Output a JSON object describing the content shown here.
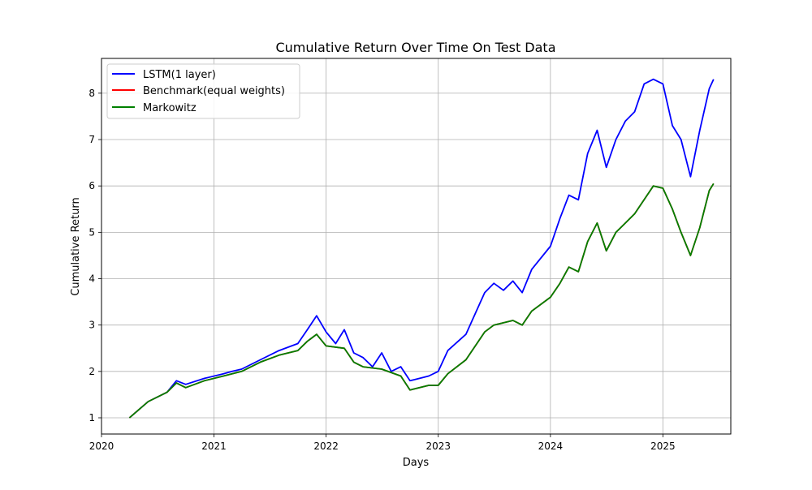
{
  "chart_data": {
    "type": "line",
    "title": "Cumulative Return Over Time On Test Data",
    "xlabel": "Days",
    "ylabel": "Cumulative Return",
    "x_ticks": [
      "2020",
      "2021",
      "2022",
      "2023",
      "2024",
      "2025"
    ],
    "y_ticks": [
      "1",
      "2",
      "3",
      "4",
      "5",
      "6",
      "7",
      "8"
    ],
    "xlim": [
      "2020-01-01",
      "2025-08-10"
    ],
    "ylim": [
      0.65,
      8.75
    ],
    "grid": true,
    "legend_position": "top-left",
    "series": [
      {
        "name": "LSTM(1 layer)",
        "color": "#0000ff",
        "x": [
          "2020-04-01",
          "2020-06-01",
          "2020-08-01",
          "2020-09-01",
          "2020-10-01",
          "2020-12-01",
          "2021-02-01",
          "2021-03-01",
          "2021-04-01",
          "2021-06-01",
          "2021-08-01",
          "2021-10-01",
          "2021-11-01",
          "2021-12-01",
          "2022-01-01",
          "2022-02-01",
          "2022-03-01",
          "2022-04-01",
          "2022-05-01",
          "2022-06-01",
          "2022-07-01",
          "2022-08-01",
          "2022-09-01",
          "2022-10-01",
          "2022-11-01",
          "2022-12-01",
          "2023-01-01",
          "2023-02-01",
          "2023-04-01",
          "2023-06-01",
          "2023-07-01",
          "2023-08-01",
          "2023-09-01",
          "2023-10-01",
          "2023-11-01",
          "2024-01-01",
          "2024-02-01",
          "2024-03-01",
          "2024-04-01",
          "2024-05-01",
          "2024-06-01",
          "2024-07-01",
          "2024-08-01",
          "2024-09-01",
          "2024-10-01",
          "2024-11-01",
          "2024-12-01",
          "2025-01-01",
          "2025-02-01",
          "2025-03-01",
          "2025-04-01",
          "2025-05-01",
          "2025-06-01",
          "2025-06-15"
        ],
        "values": [
          1.0,
          1.35,
          1.55,
          1.8,
          1.72,
          1.85,
          1.95,
          2.0,
          2.05,
          2.25,
          2.45,
          2.6,
          2.9,
          3.2,
          2.85,
          2.6,
          2.9,
          2.4,
          2.3,
          2.1,
          2.4,
          2.0,
          2.1,
          1.8,
          1.85,
          1.9,
          2.0,
          2.45,
          2.8,
          3.7,
          3.9,
          3.75,
          3.95,
          3.7,
          4.2,
          4.7,
          5.3,
          5.8,
          5.7,
          6.7,
          7.2,
          6.4,
          7.0,
          7.4,
          7.6,
          8.2,
          8.3,
          8.2,
          7.3,
          7.0,
          6.2,
          7.2,
          8.1,
          8.3
        ]
      },
      {
        "name": "Benchmark(equal weights)",
        "color": "#ff0000",
        "x": [
          "2020-04-01",
          "2020-06-01",
          "2020-08-01",
          "2020-09-01",
          "2020-10-01",
          "2020-12-01",
          "2021-02-01",
          "2021-04-01",
          "2021-06-01",
          "2021-08-01",
          "2021-10-01",
          "2021-11-01",
          "2021-12-01",
          "2022-01-01",
          "2022-03-01",
          "2022-04-01",
          "2022-05-01",
          "2022-07-01",
          "2022-09-01",
          "2022-10-01",
          "2022-12-01",
          "2023-01-01",
          "2023-02-01",
          "2023-04-01",
          "2023-06-01",
          "2023-07-01",
          "2023-09-01",
          "2023-10-01",
          "2023-11-01",
          "2024-01-01",
          "2024-02-01",
          "2024-03-01",
          "2024-04-01",
          "2024-05-01",
          "2024-06-01",
          "2024-07-01",
          "2024-08-01",
          "2024-09-01",
          "2024-10-01",
          "2024-12-01",
          "2025-01-01",
          "2025-02-01",
          "2025-03-01",
          "2025-04-01",
          "2025-05-01",
          "2025-06-01",
          "2025-06-15"
        ],
        "values": [
          1.0,
          1.35,
          1.55,
          1.75,
          1.65,
          1.8,
          1.9,
          2.0,
          2.2,
          2.35,
          2.45,
          2.65,
          2.8,
          2.55,
          2.5,
          2.2,
          2.1,
          2.05,
          1.9,
          1.6,
          1.7,
          1.7,
          1.95,
          2.25,
          2.85,
          3.0,
          3.1,
          3.0,
          3.3,
          3.6,
          3.9,
          4.25,
          4.15,
          4.8,
          5.2,
          4.6,
          5.0,
          5.2,
          5.4,
          6.0,
          5.95,
          5.5,
          5.0,
          4.5,
          5.1,
          5.9,
          6.05
        ]
      },
      {
        "name": "Markowitz",
        "color": "#008000",
        "x": [
          "2020-04-01",
          "2020-06-01",
          "2020-08-01",
          "2020-09-01",
          "2020-10-01",
          "2020-12-01",
          "2021-02-01",
          "2021-04-01",
          "2021-06-01",
          "2021-08-01",
          "2021-10-01",
          "2021-11-01",
          "2021-12-01",
          "2022-01-01",
          "2022-03-01",
          "2022-04-01",
          "2022-05-01",
          "2022-07-01",
          "2022-09-01",
          "2022-10-01",
          "2022-12-01",
          "2023-01-01",
          "2023-02-01",
          "2023-04-01",
          "2023-06-01",
          "2023-07-01",
          "2023-09-01",
          "2023-10-01",
          "2023-11-01",
          "2024-01-01",
          "2024-02-01",
          "2024-03-01",
          "2024-04-01",
          "2024-05-01",
          "2024-06-01",
          "2024-07-01",
          "2024-08-01",
          "2024-09-01",
          "2024-10-01",
          "2024-12-01",
          "2025-01-01",
          "2025-02-01",
          "2025-03-01",
          "2025-04-01",
          "2025-05-01",
          "2025-06-01",
          "2025-06-15"
        ],
        "values": [
          1.0,
          1.35,
          1.55,
          1.75,
          1.65,
          1.8,
          1.9,
          2.0,
          2.2,
          2.35,
          2.45,
          2.65,
          2.8,
          2.55,
          2.5,
          2.2,
          2.1,
          2.05,
          1.9,
          1.6,
          1.7,
          1.7,
          1.95,
          2.25,
          2.85,
          3.0,
          3.1,
          3.0,
          3.3,
          3.6,
          3.9,
          4.25,
          4.15,
          4.8,
          5.2,
          4.6,
          5.0,
          5.2,
          5.4,
          6.0,
          5.95,
          5.5,
          5.0,
          4.5,
          5.1,
          5.9,
          6.05
        ]
      }
    ]
  }
}
